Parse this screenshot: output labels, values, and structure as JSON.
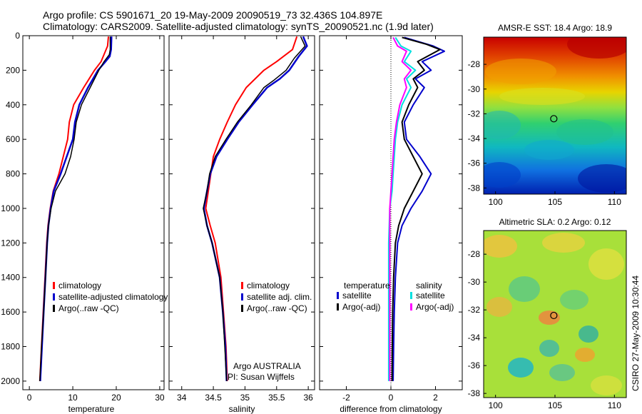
{
  "header": {
    "line1": "Argo profile: CS 5901671_20 19-May-2009 20090519_73 32.436S 104.897E",
    "line2": "Climatology: CARS2009. Satellite-adjusted climatology: synTS_20090521.nc (1.9d later)"
  },
  "stamp": "CSIRO 27-May-2009 10:30:44",
  "colors": {
    "climatology": "#ff0000",
    "satellite": "#0000cc",
    "argo": "#000000",
    "salinity_satellite": "#00e0e0",
    "salinity_argo": "#ff00ff"
  },
  "chart_data": [
    {
      "type": "line",
      "id": "temperature",
      "xlabel": "temperature",
      "xlim": [
        -1.5,
        31
      ],
      "ylim": [
        0,
        2050
      ],
      "xticks": [
        0,
        10,
        20,
        30
      ],
      "xtick_labels": [
        "0",
        "10",
        "20",
        "30"
      ],
      "yticks": [
        0,
        200,
        400,
        600,
        800,
        1000,
        1200,
        1400,
        1600,
        1800,
        2000
      ],
      "ytick_labels": [
        "0",
        "200",
        "400",
        "600",
        "800",
        "1000",
        "1200",
        "1400",
        "1600",
        "1800",
        "2000"
      ],
      "series": [
        {
          "name": "climatology",
          "color": "#ff0000",
          "width": 2,
          "points": [
            [
              18.2,
              5
            ],
            [
              18.0,
              60
            ],
            [
              16.5,
              150
            ],
            [
              15,
              200
            ],
            [
              12.5,
              300
            ],
            [
              10.2,
              400
            ],
            [
              9.2,
              500
            ],
            [
              8.8,
              600
            ],
            [
              7.8,
              700
            ],
            [
              6.8,
              800
            ],
            [
              5.5,
              900
            ],
            [
              4.8,
              1000
            ],
            [
              4.3,
              1100
            ],
            [
              4,
              1200
            ],
            [
              3.6,
              1400
            ],
            [
              3.2,
              1600
            ],
            [
              2.8,
              1800
            ],
            [
              2.4,
              2000
            ]
          ]
        },
        {
          "name": "satellite-adjusted climatology",
          "color": "#0000cc",
          "width": 2.5,
          "points": [
            [
              18.9,
              5
            ],
            [
              18.8,
              80
            ],
            [
              18.5,
              120
            ],
            [
              17.5,
              150
            ],
            [
              15.8,
              200
            ],
            [
              13.5,
              300
            ],
            [
              11.5,
              400
            ],
            [
              10.5,
              500
            ],
            [
              10,
              600
            ],
            [
              8.6,
              700
            ],
            [
              7.2,
              800
            ],
            [
              5.6,
              900
            ],
            [
              4.9,
              1000
            ],
            [
              4.4,
              1100
            ],
            [
              4.1,
              1200
            ],
            [
              3.7,
              1400
            ],
            [
              3.3,
              1600
            ],
            [
              2.9,
              1800
            ],
            [
              2.5,
              2000
            ]
          ]
        },
        {
          "name": "Argo(..raw -QC)",
          "color": "#000000",
          "width": 1.5,
          "points": [
            [
              18.6,
              5
            ],
            [
              18.6,
              80
            ],
            [
              18.4,
              110
            ],
            [
              17.2,
              150
            ],
            [
              16,
              200
            ],
            [
              14,
              300
            ],
            [
              12,
              400
            ],
            [
              10.8,
              500
            ],
            [
              10.3,
              600
            ],
            [
              9.5,
              700
            ],
            [
              8.2,
              800
            ],
            [
              6,
              900
            ],
            [
              5,
              1000
            ],
            [
              4.4,
              1100
            ],
            [
              4.1,
              1200
            ],
            [
              3.7,
              1400
            ],
            [
              3.3,
              1600
            ],
            [
              2.8,
              1800
            ],
            [
              2.4,
              2000
            ]
          ]
        }
      ],
      "legend": [
        {
          "label": "climatology",
          "color": "#ff0000"
        },
        {
          "label": "satellite-adjusted climatology",
          "color": "#0000cc"
        },
        {
          "label": "Argo(..raw -QC)",
          "color": "#000000"
        }
      ]
    },
    {
      "type": "line",
      "id": "salinity",
      "xlabel": "salinity",
      "xlim": [
        33.8,
        36.1
      ],
      "ylim": [
        0,
        2050
      ],
      "xticks": [
        34,
        34.5,
        35,
        35.5,
        36
      ],
      "xtick_labels": [
        "34",
        "34.5",
        "35",
        "35.5",
        "36"
      ],
      "series": [
        {
          "name": "climatology",
          "color": "#ff0000",
          "width": 2,
          "points": [
            [
              35.82,
              5
            ],
            [
              35.75,
              80
            ],
            [
              35.5,
              150
            ],
            [
              35.3,
              200
            ],
            [
              35.02,
              300
            ],
            [
              34.85,
              400
            ],
            [
              34.72,
              500
            ],
            [
              34.6,
              600
            ],
            [
              34.5,
              700
            ],
            [
              34.46,
              800
            ],
            [
              34.42,
              900
            ],
            [
              34.38,
              1000
            ],
            [
              34.45,
              1100
            ],
            [
              34.53,
              1200
            ],
            [
              34.62,
              1400
            ],
            [
              34.66,
              1600
            ],
            [
              34.7,
              1800
            ],
            [
              34.72,
              2000
            ]
          ]
        },
        {
          "name": "satellite adj. clim.",
          "color": "#0000cc",
          "width": 2.5,
          "points": [
            [
              35.92,
              5
            ],
            [
              35.98,
              60
            ],
            [
              35.85,
              120
            ],
            [
              35.7,
              200
            ],
            [
              35.55,
              250
            ],
            [
              35.35,
              300
            ],
            [
              35.12,
              400
            ],
            [
              34.9,
              500
            ],
            [
              34.72,
              600
            ],
            [
              34.55,
              700
            ],
            [
              34.45,
              800
            ],
            [
              34.4,
              900
            ],
            [
              34.35,
              1000
            ],
            [
              34.4,
              1100
            ],
            [
              34.48,
              1200
            ],
            [
              34.6,
              1400
            ],
            [
              34.65,
              1600
            ],
            [
              34.69,
              1800
            ],
            [
              34.71,
              2000
            ]
          ]
        },
        {
          "name": "Argo(..raw -QC)",
          "color": "#000000",
          "width": 1.5,
          "points": [
            [
              35.88,
              5
            ],
            [
              35.95,
              60
            ],
            [
              35.78,
              130
            ],
            [
              35.65,
              200
            ],
            [
              35.45,
              260
            ],
            [
              35.3,
              300
            ],
            [
              35.1,
              400
            ],
            [
              34.88,
              500
            ],
            [
              34.7,
              600
            ],
            [
              34.53,
              700
            ],
            [
              34.44,
              800
            ],
            [
              34.4,
              900
            ],
            [
              34.34,
              1000
            ],
            [
              34.4,
              1100
            ],
            [
              34.48,
              1200
            ],
            [
              34.6,
              1400
            ],
            [
              34.65,
              1600
            ],
            [
              34.68,
              1800
            ],
            [
              34.71,
              2000
            ]
          ]
        }
      ],
      "legend": [
        {
          "label": "climatology",
          "color": "#ff0000"
        },
        {
          "label": "satellite adj. clim.",
          "color": "#0000cc"
        },
        {
          "label": "Argo(..raw -QC)",
          "color": "#000000"
        }
      ],
      "annotation": [
        "Argo AUSTRALIA",
        "PI: Susan Wijffels"
      ]
    },
    {
      "type": "line",
      "id": "difference",
      "xlabel": "difference from climatology",
      "xlim": [
        -3.2,
        3.2
      ],
      "ylim": [
        0,
        2050
      ],
      "xticks": [
        -2,
        0,
        2
      ],
      "xtick_labels": [
        "-2",
        "0",
        "2"
      ],
      "zero_line": true,
      "series": [
        {
          "name": "temperature satellite",
          "color": "#0000cc",
          "width": 2,
          "points": [
            [
              0.6,
              10
            ],
            [
              1.9,
              60
            ],
            [
              2.4,
              90
            ],
            [
              1.4,
              150
            ],
            [
              1.8,
              200
            ],
            [
              1.1,
              250
            ],
            [
              1.5,
              300
            ],
            [
              1.0,
              400
            ],
            [
              0.6,
              500
            ],
            [
              0.7,
              600
            ],
            [
              1.3,
              700
            ],
            [
              1.8,
              800
            ],
            [
              1.4,
              900
            ],
            [
              0.9,
              1000
            ],
            [
              0.5,
              1100
            ],
            [
              0.3,
              1200
            ],
            [
              0.2,
              1400
            ],
            [
              0.15,
              1600
            ],
            [
              0.12,
              1800
            ],
            [
              0.1,
              2000
            ]
          ]
        },
        {
          "name": "temperature Argo(-adj)",
          "color": "#000000",
          "width": 2,
          "points": [
            [
              0.5,
              10
            ],
            [
              1.6,
              50
            ],
            [
              2.2,
              80
            ],
            [
              1.2,
              150
            ],
            [
              1.5,
              200
            ],
            [
              1.0,
              250
            ],
            [
              1.2,
              300
            ],
            [
              0.8,
              400
            ],
            [
              0.5,
              500
            ],
            [
              0.6,
              600
            ],
            [
              1.0,
              700
            ],
            [
              1.4,
              800
            ],
            [
              1.0,
              900
            ],
            [
              0.6,
              1000
            ],
            [
              0.35,
              1100
            ],
            [
              0.2,
              1200
            ],
            [
              0.12,
              1400
            ],
            [
              0.08,
              1600
            ],
            [
              0.06,
              1800
            ],
            [
              0.05,
              2000
            ]
          ]
        },
        {
          "name": "salinity satellite",
          "color": "#00e0e0",
          "width": 2,
          "points": [
            [
              0.2,
              10
            ],
            [
              0.45,
              60
            ],
            [
              0.9,
              90
            ],
            [
              0.6,
              150
            ],
            [
              1.1,
              200
            ],
            [
              0.7,
              250
            ],
            [
              0.9,
              300
            ],
            [
              0.5,
              400
            ],
            [
              0.3,
              500
            ],
            [
              0.2,
              600
            ],
            [
              0.15,
              700
            ],
            [
              0.1,
              800
            ],
            [
              0.05,
              900
            ],
            [
              -0.05,
              1000
            ],
            [
              -0.1,
              1200
            ],
            [
              -0.1,
              1400
            ],
            [
              -0.1,
              1600
            ],
            [
              -0.1,
              1800
            ],
            [
              -0.1,
              2000
            ]
          ]
        },
        {
          "name": "salinity Argo(-adj)",
          "color": "#ff00ff",
          "width": 2,
          "points": [
            [
              0.1,
              10
            ],
            [
              0.3,
              60
            ],
            [
              0.7,
              90
            ],
            [
              0.5,
              150
            ],
            [
              0.9,
              200
            ],
            [
              0.6,
              250
            ],
            [
              0.7,
              300
            ],
            [
              0.4,
              400
            ],
            [
              0.25,
              500
            ],
            [
              0.15,
              600
            ],
            [
              0.1,
              700
            ],
            [
              0.05,
              800
            ],
            [
              0.0,
              900
            ],
            [
              -0.05,
              1000
            ],
            [
              -0.05,
              1200
            ],
            [
              -0.05,
              1400
            ],
            [
              -0.05,
              1600
            ],
            [
              -0.05,
              1800
            ],
            [
              -0.05,
              2000
            ]
          ]
        }
      ],
      "legend_titles": [
        "temperature",
        "salinity"
      ],
      "legend": [
        {
          "label": "satellite",
          "color": "#0000cc",
          "group": "temperature"
        },
        {
          "label": "Argo(-adj)",
          "color": "#000000",
          "group": "temperature"
        },
        {
          "label": "satellite",
          "color": "#00e0e0",
          "group": "salinity"
        },
        {
          "label": "Argo(-adj)",
          "color": "#ff00ff",
          "group": "salinity"
        }
      ]
    },
    {
      "type": "heatmap",
      "id": "sst",
      "title": "AMSR-E SST: 18.4  Argo: 18.9",
      "xlim": [
        99,
        111
      ],
      "ylim": [
        -38.5,
        -25.8
      ],
      "xticks": [
        100,
        105,
        110
      ],
      "xtick_labels": [
        "100",
        "105",
        "110"
      ],
      "yticks": [
        -28,
        -30,
        -32,
        -34,
        -36,
        -38
      ],
      "ytick_labels": [
        "-28",
        "-30",
        "-32",
        "-34",
        "-36",
        "-38"
      ],
      "marker": [
        104.9,
        -32.4
      ]
    },
    {
      "type": "heatmap",
      "id": "sla",
      "title": "Altimetric SLA: 0.2  Argo: 0.12",
      "xlim": [
        99,
        111
      ],
      "ylim": [
        -38.3,
        -26.3
      ],
      "xticks": [
        100,
        105,
        110
      ],
      "xtick_labels": [
        "100",
        "105",
        "110"
      ],
      "yticks": [
        -28,
        -30,
        -32,
        -34,
        -36,
        -38
      ],
      "ytick_labels": [
        "-28",
        "-30",
        "-32",
        "-34",
        "-36",
        "-38"
      ],
      "marker": [
        104.9,
        -32.4
      ]
    }
  ]
}
